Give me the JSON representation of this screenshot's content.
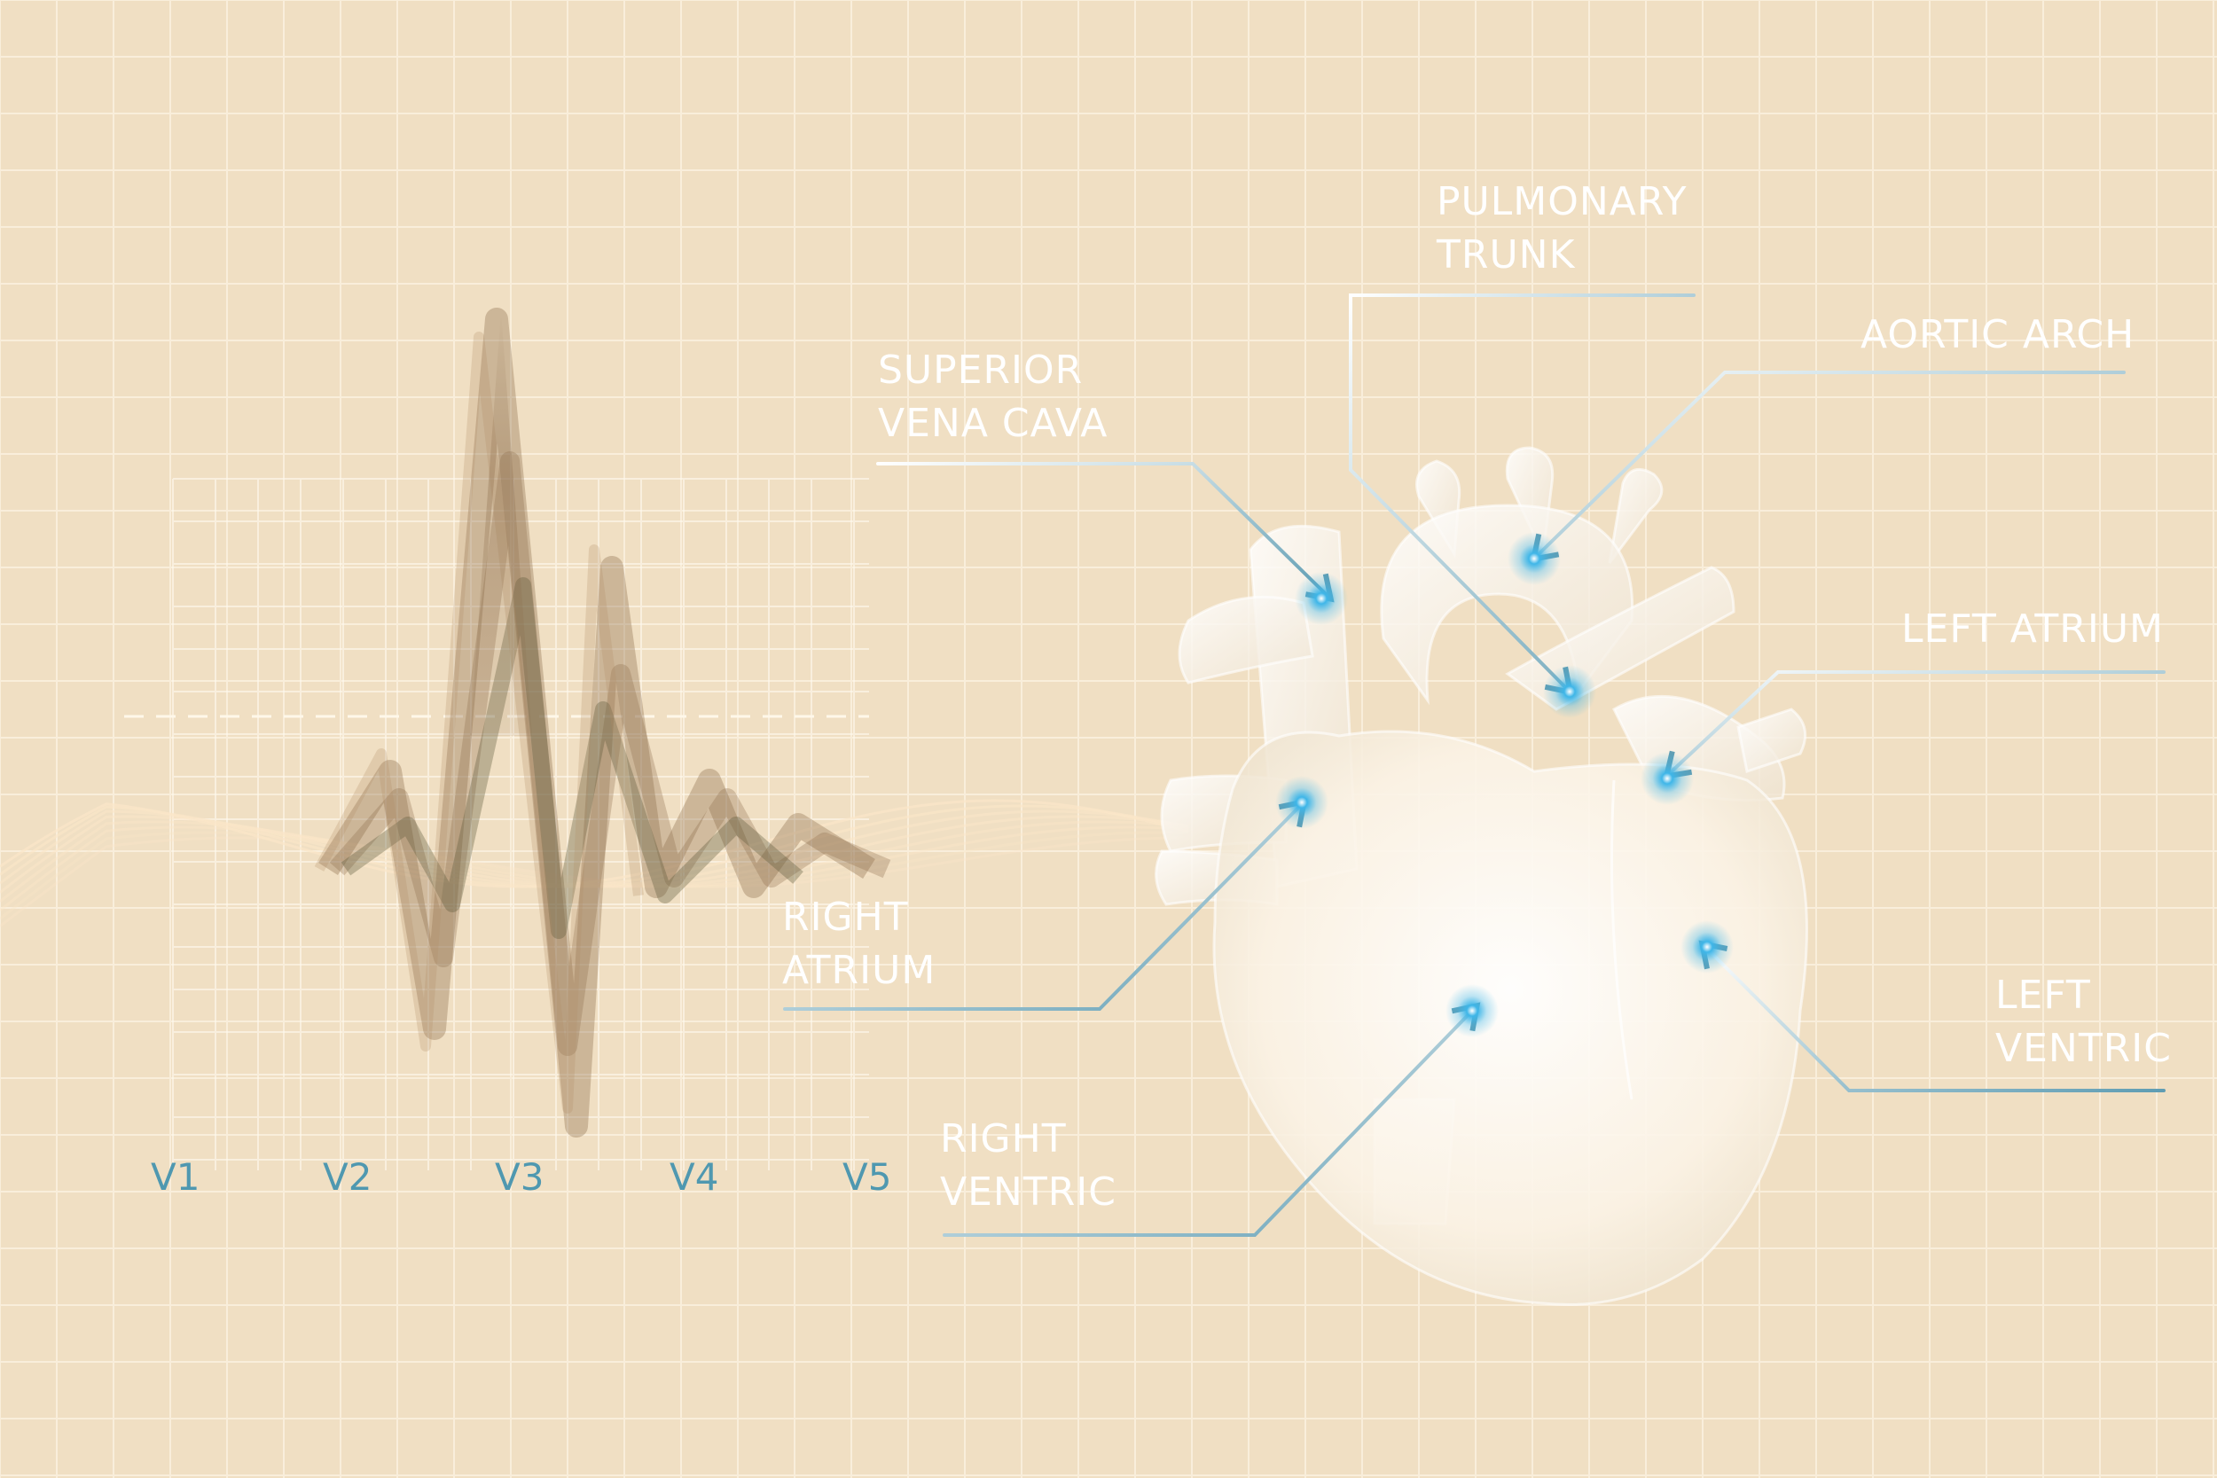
{
  "colors": {
    "background": "#f0dfc3",
    "grid": "#fbf1e0",
    "label": "#ffffff",
    "lead_label": "#4f98b0",
    "leader_line": "#ffffff",
    "arrow": "#5f9db3",
    "marker_glow": "#3fb6e8",
    "ecg_trace": "#8a6a48"
  },
  "ecg": {
    "leads": [
      "V1",
      "V2",
      "V3",
      "V4",
      "V5"
    ]
  },
  "labels": {
    "pulmonary_trunk": [
      "PULMONARY",
      "TRUNK"
    ],
    "aortic_arch": [
      "AORTIC ARCH"
    ],
    "superior_vena_cava": [
      "SUPERIOR",
      "VENA CAVA"
    ],
    "left_atrium": [
      "LEFT ATRIUM"
    ],
    "right_atrium": [
      "RIGHT",
      "ATRIUM"
    ],
    "left_ventric": [
      "LEFT",
      "VENTRIC"
    ],
    "right_ventric": [
      "RIGHT",
      "VENTRIC"
    ]
  },
  "icons": {
    "heart": "heart-illustration",
    "arrow": "arrow-icon",
    "marker": "glow-marker-icon"
  }
}
